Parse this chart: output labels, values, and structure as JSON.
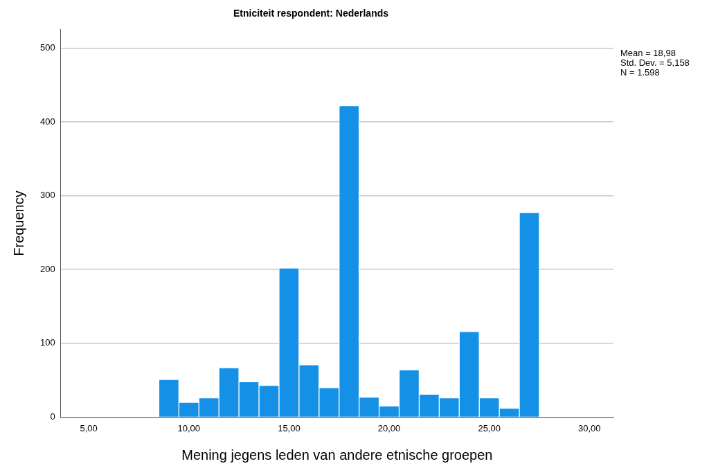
{
  "chart_data": {
    "type": "histogram",
    "title": "Etniciteit respondent: Nederlands",
    "xlabel": "Mening jegens leden van andere etnische groepen",
    "ylabel": "Frequency",
    "annotations": [
      "Mean = 18,98",
      "Std. Dev. = 5,158",
      "N = 1.598"
    ],
    "bins": [
      8.5,
      9.5,
      10.5,
      11.5,
      12.5,
      13.5,
      14.5,
      15.5,
      16.5,
      17.5,
      18.5,
      19.5,
      20.5,
      21.5,
      22.5,
      23.5,
      24.5,
      25.5,
      26.5,
      27.5
    ],
    "values": [
      51,
      20,
      26,
      67,
      48,
      43,
      202,
      71,
      40,
      422,
      27,
      15,
      64,
      31,
      26,
      116,
      26,
      12,
      277
    ],
    "color": "#1490e6",
    "xlim": [
      3.6,
      31.2
    ],
    "xticks": [
      {
        "value": 5,
        "label": "5,00"
      },
      {
        "value": 10,
        "label": "10,00"
      },
      {
        "value": 15,
        "label": "15,00"
      },
      {
        "value": 20,
        "label": "20,00"
      },
      {
        "value": 25,
        "label": "25,00"
      },
      {
        "value": 30,
        "label": "30,00"
      }
    ],
    "ylim": [
      0,
      525
    ],
    "yticks": [
      0,
      100,
      200,
      300,
      400,
      500
    ],
    "grid": "y"
  }
}
